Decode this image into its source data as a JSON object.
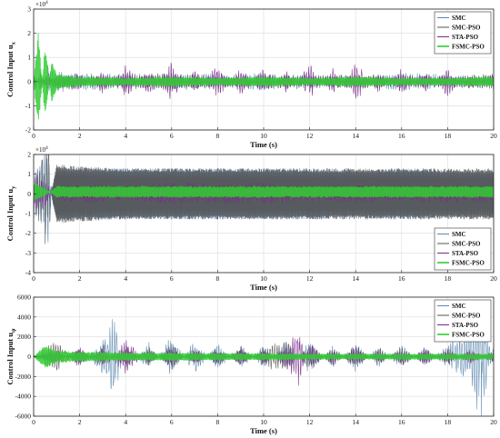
{
  "chart_data": [
    {
      "type": "line",
      "ylabel_main": "Control Input u",
      "ylabel_sub": "x",
      "xlabel": "Time (s)",
      "multiplier_base": "×10",
      "multiplier_exp": "4",
      "xlim": [
        0,
        20
      ],
      "ylim": [
        -2,
        3
      ],
      "x_ticks": [
        0,
        2,
        4,
        6,
        8,
        10,
        12,
        14,
        16,
        18,
        20
      ],
      "y_ticks": [
        -2,
        -1,
        0,
        1,
        2,
        3
      ],
      "grid": true,
      "legend_position": "top-right",
      "series": [
        {
          "name": "SMC",
          "color": "#5b87b0",
          "x": [
            0,
            0.1,
            0.3,
            0.6,
            1,
            2,
            4,
            6,
            8,
            10,
            12,
            14,
            16,
            18,
            20
          ],
          "y": [
            0,
            0.3,
            -0.4,
            0.6,
            0.35,
            0.3,
            0.25,
            0.3,
            0.25,
            0.3,
            0.25,
            0.2,
            0.3,
            0.25,
            0.2
          ]
        },
        {
          "name": "SMC-PSO",
          "color": "#555555",
          "x": [
            0,
            0.1,
            0.3,
            0.6,
            1,
            2,
            4,
            6,
            8,
            10,
            12,
            14,
            16,
            18,
            20
          ],
          "y": [
            0,
            -0.3,
            0.5,
            -0.4,
            0.3,
            0.2,
            0.25,
            0.3,
            0.2,
            0.25,
            0.2,
            0.25,
            0.2,
            0.2,
            0.25
          ]
        },
        {
          "name": "STA-PSO",
          "color": "#7a2a8a",
          "x": [
            0,
            0.5,
            1,
            2,
            3,
            4,
            5,
            6,
            7,
            8,
            9,
            10,
            11,
            12,
            13,
            14,
            15,
            16,
            17,
            18,
            19,
            20
          ],
          "y": [
            0,
            0.1,
            0.2,
            0.3,
            -0.4,
            0.6,
            -0.5,
            0.7,
            -0.4,
            0.6,
            -0.5,
            0.5,
            -0.4,
            0.6,
            -0.5,
            0.7,
            -0.4,
            0.5,
            -0.4,
            0.5,
            -0.3,
            0.4
          ]
        },
        {
          "name": "FSMC-PSO",
          "color": "#33cc33",
          "x": [
            0,
            0.2,
            0.5,
            0.8,
            1,
            2,
            4,
            6,
            8,
            10,
            12,
            14,
            16,
            18,
            20
          ],
          "y": [
            0,
            2.1,
            -1.6,
            1.0,
            0.3,
            0.2,
            0.15,
            0.2,
            0.15,
            0.2,
            0.15,
            0.2,
            0.15,
            0.15,
            0.2
          ]
        }
      ]
    },
    {
      "type": "line",
      "ylabel_main": "Control Input u",
      "ylabel_sub": "y",
      "xlabel": "Time (s)",
      "multiplier_base": "×10",
      "multiplier_exp": "4",
      "xlim": [
        0,
        20
      ],
      "ylim": [
        -4,
        2
      ],
      "x_ticks": [
        0,
        2,
        4,
        6,
        8,
        10,
        12,
        14,
        16,
        18,
        20
      ],
      "y_ticks": [
        -4,
        -3,
        -2,
        -1,
        0,
        1,
        2
      ],
      "grid": true,
      "legend_position": "bottom-right",
      "series": [
        {
          "name": "SMC",
          "color": "#5b87b0",
          "x": [
            0,
            0.3,
            0.6,
            0.8,
            1,
            2,
            4,
            6,
            8,
            10,
            12,
            14,
            16,
            18,
            20
          ],
          "y": [
            -1.1,
            -1.3,
            -3.2,
            0.2,
            1.4,
            1.3,
            1.3,
            1.3,
            1.3,
            1.3,
            1.3,
            1.2,
            1.3,
            1.2,
            1.2
          ]
        },
        {
          "name": "SMC-PSO",
          "color": "#555555",
          "x": [
            0,
            0.3,
            0.6,
            0.8,
            1,
            2,
            4,
            6,
            8,
            10,
            12,
            14,
            16,
            18,
            20
          ],
          "y": [
            -1.0,
            -1.2,
            -3.8,
            0.3,
            1.5,
            1.4,
            1.3,
            1.3,
            1.3,
            1.3,
            1.3,
            1.3,
            1.3,
            1.3,
            1.3
          ]
        },
        {
          "name": "STA-PSO",
          "color": "#7a2a8a",
          "x": [
            0,
            0.5,
            1,
            2,
            4,
            6,
            8,
            10,
            12,
            14,
            16,
            18,
            20
          ],
          "y": [
            -0.9,
            -0.6,
            0.3,
            0.4,
            0.3,
            0.5,
            0.4,
            0.5,
            0.3,
            0.4,
            0.3,
            0.4,
            0.3
          ]
        },
        {
          "name": "FSMC-PSO",
          "color": "#33cc33",
          "x": [
            0,
            0.5,
            1,
            2,
            4,
            6,
            8,
            10,
            12,
            14,
            16,
            18,
            20
          ],
          "y": [
            -0.5,
            -0.2,
            0.3,
            0.3,
            0.3,
            0.3,
            0.3,
            0.3,
            0.3,
            0.3,
            0.3,
            0.3,
            0.3
          ]
        }
      ]
    },
    {
      "type": "line",
      "ylabel_main": "Control Input u",
      "ylabel_sub": "ψ",
      "xlabel": "Time (s)",
      "multiplier_base": "",
      "multiplier_exp": "",
      "xlim": [
        0,
        20
      ],
      "ylim": [
        -6000,
        6000
      ],
      "x_ticks": [
        0,
        2,
        4,
        6,
        8,
        10,
        12,
        14,
        16,
        18,
        20
      ],
      "y_ticks": [
        -6000,
        -4000,
        -2000,
        0,
        2000,
        4000,
        6000
      ],
      "grid": true,
      "legend_position": "top-right",
      "series": [
        {
          "name": "SMC",
          "color": "#5b87b0",
          "x": [
            0,
            1,
            2,
            3,
            3.5,
            4,
            5,
            6,
            7,
            8,
            9,
            10,
            11,
            12,
            13,
            14,
            15,
            16,
            17,
            18,
            19,
            19.5,
            20
          ],
          "y": [
            0,
            500,
            -800,
            1500,
            3600,
            -1000,
            1200,
            -1800,
            1600,
            -1200,
            900,
            -1000,
            1400,
            -1500,
            1100,
            -1300,
            1000,
            -1100,
            900,
            -1200,
            -2500,
            -5700,
            1200
          ]
        },
        {
          "name": "SMC-PSO",
          "color": "#555555",
          "x": [
            0,
            1,
            2,
            3,
            4,
            5,
            6,
            7,
            8,
            9,
            10,
            11,
            12,
            13,
            14,
            15,
            16,
            17,
            18,
            19,
            20
          ],
          "y": [
            0,
            -1500,
            800,
            -1200,
            1000,
            -900,
            1100,
            -800,
            900,
            -1000,
            800,
            1500,
            -1300,
            900,
            -1000,
            800,
            -900,
            700,
            -800,
            600,
            -600
          ]
        },
        {
          "name": "STA-PSO",
          "color": "#7a2a8a",
          "x": [
            0,
            1,
            2,
            3,
            4,
            5,
            6,
            7,
            8,
            9,
            10,
            11,
            11.5,
            12,
            13,
            14,
            15,
            16,
            17,
            18,
            19,
            20
          ],
          "y": [
            0,
            600,
            -900,
            700,
            -1500,
            600,
            -800,
            700,
            -600,
            800,
            -700,
            900,
            2400,
            -1200,
            700,
            -900,
            600,
            -700,
            800,
            -600,
            700,
            -500
          ]
        },
        {
          "name": "FSMC-PSO",
          "color": "#33cc33",
          "x": [
            0,
            0.5,
            1,
            2,
            4,
            6,
            8,
            10,
            12,
            14,
            16,
            18,
            20
          ],
          "y": [
            0,
            1200,
            600,
            500,
            400,
            400,
            350,
            350,
            300,
            300,
            300,
            300,
            300
          ]
        }
      ]
    }
  ]
}
